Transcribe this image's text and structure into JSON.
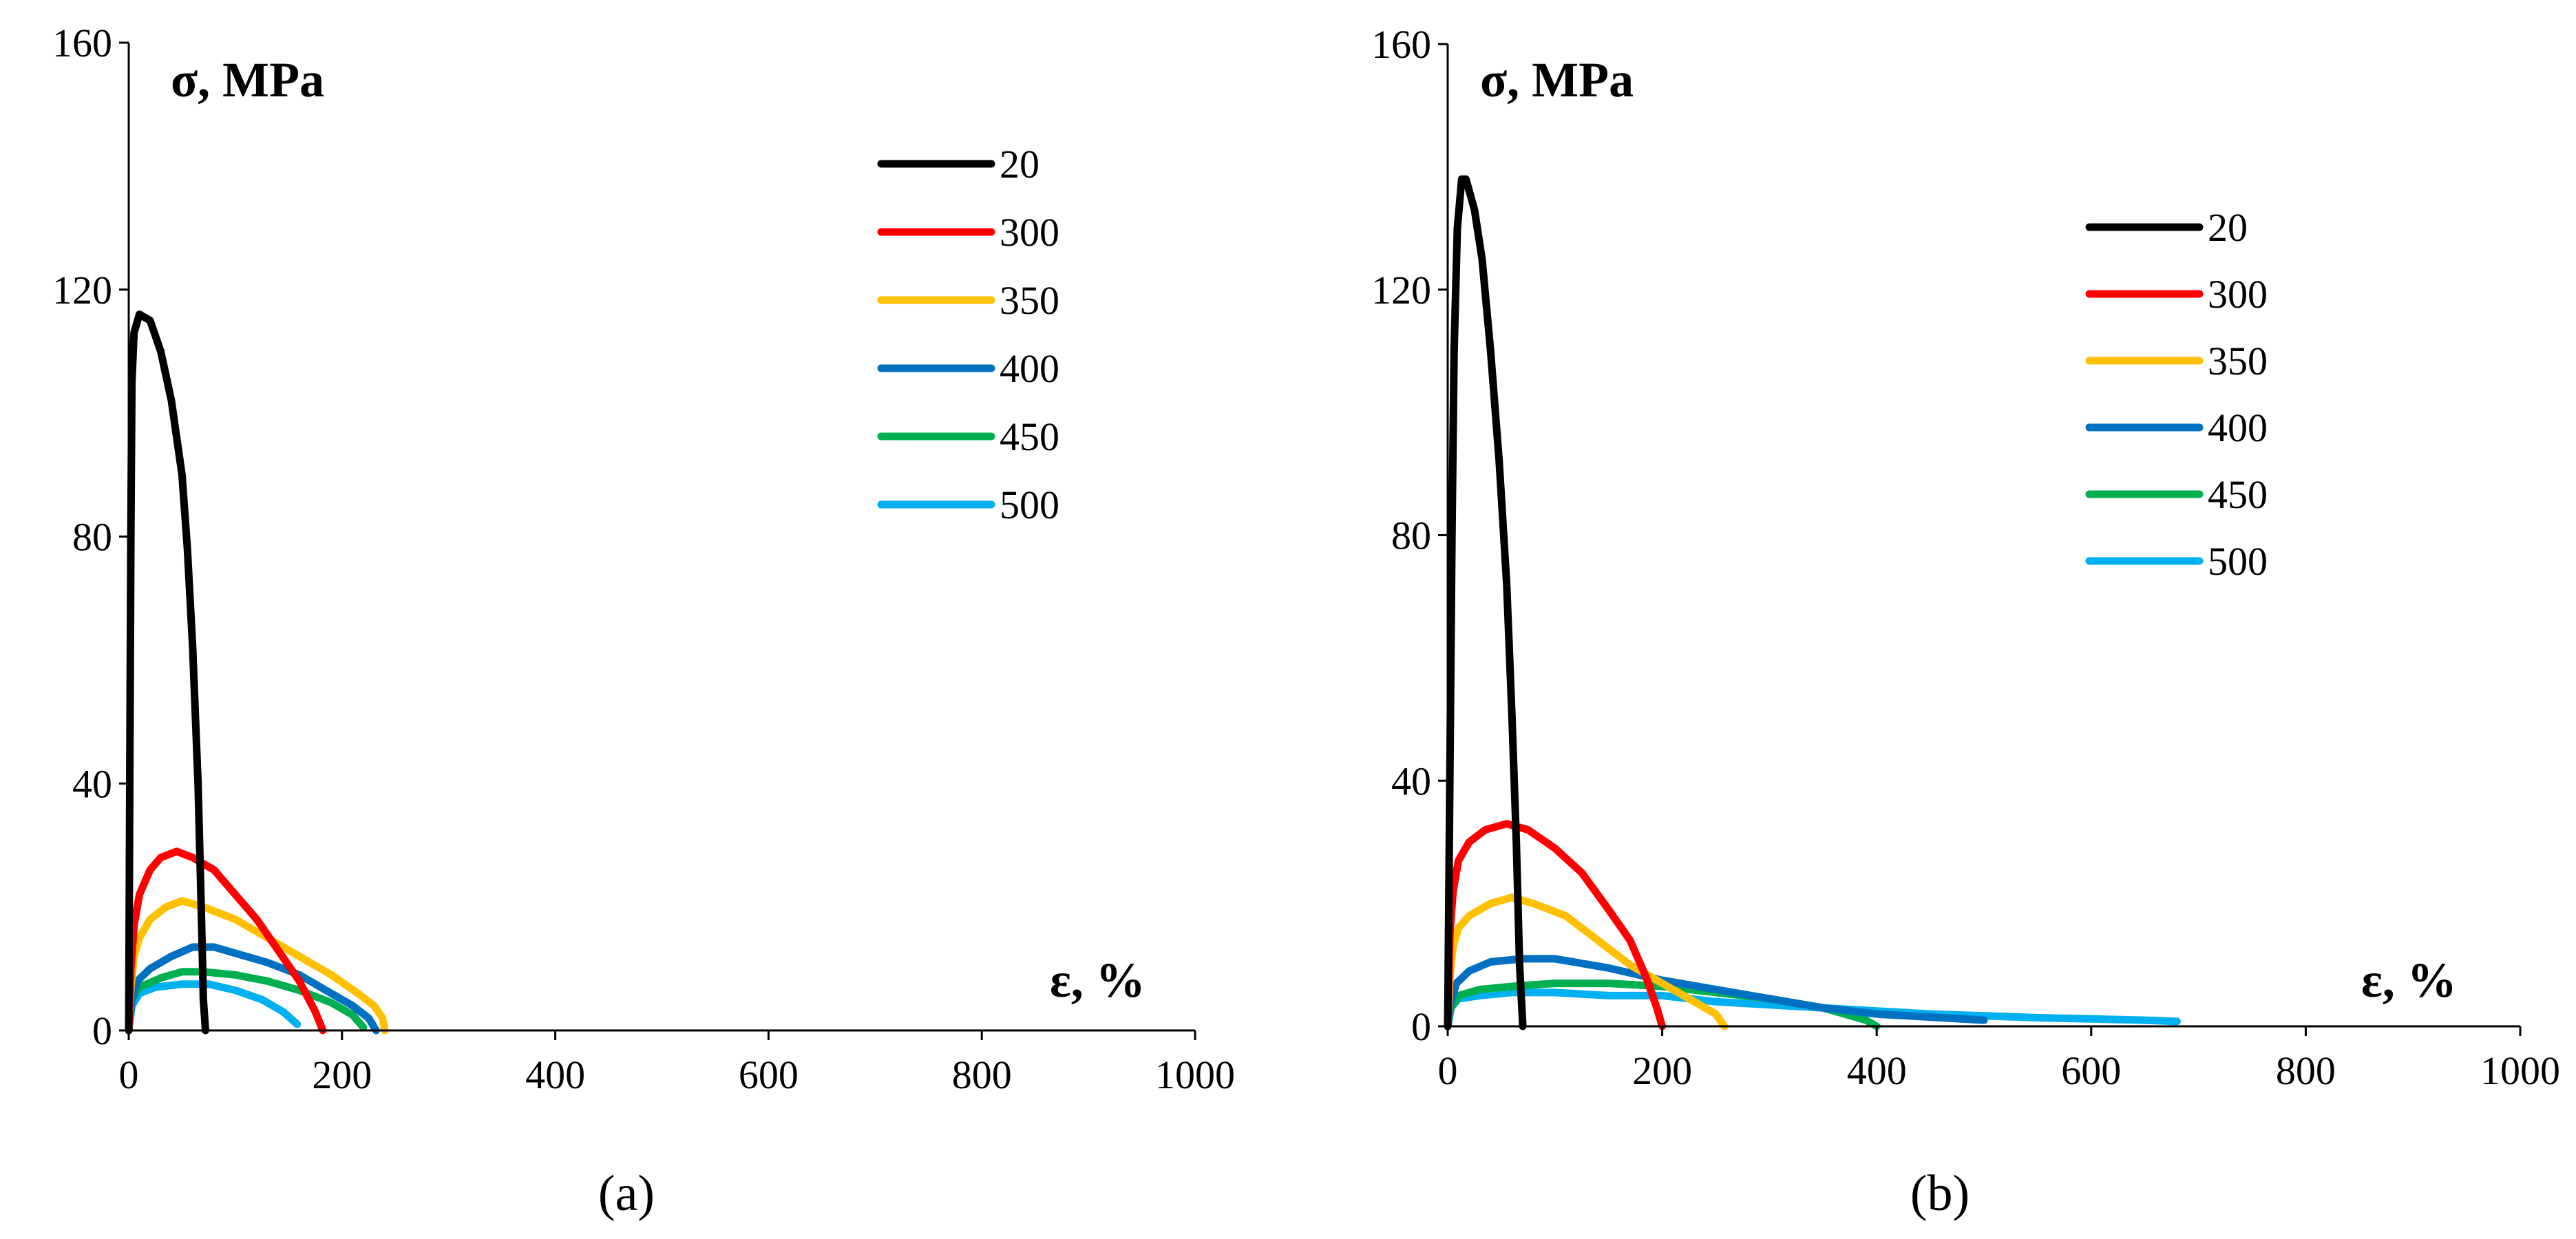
{
  "chart_data": [
    {
      "type": "line",
      "panel_label": "(a)",
      "ylabel": "σ, MPa",
      "xlabel": "ε, %",
      "xlim": [
        0,
        1000
      ],
      "ylim": [
        0,
        160
      ],
      "xticks": [
        "0",
        "200",
        "400",
        "600",
        "800",
        "1000"
      ],
      "yticks": [
        "0",
        "40",
        "80",
        "120",
        "160"
      ],
      "legend_position": "top-right",
      "series": [
        {
          "name": "20",
          "color": "#000000",
          "points": [
            [
              0,
              0
            ],
            [
              1,
              40
            ],
            [
              2,
              80
            ],
            [
              3,
              105
            ],
            [
              5,
              113
            ],
            [
              10,
              116
            ],
            [
              20,
              115
            ],
            [
              30,
              110
            ],
            [
              40,
              102
            ],
            [
              50,
              90
            ],
            [
              55,
              78
            ],
            [
              60,
              62
            ],
            [
              65,
              40
            ],
            [
              68,
              20
            ],
            [
              70,
              5
            ],
            [
              72,
              0
            ]
          ]
        },
        {
          "name": "300",
          "color": "#ff0000",
          "points": [
            [
              0,
              0
            ],
            [
              2,
              10
            ],
            [
              5,
              17
            ],
            [
              10,
              22
            ],
            [
              20,
              26
            ],
            [
              30,
              28
            ],
            [
              45,
              29
            ],
            [
              60,
              28
            ],
            [
              80,
              26
            ],
            [
              100,
              22
            ],
            [
              120,
              18
            ],
            [
              140,
              13
            ],
            [
              160,
              8
            ],
            [
              175,
              3
            ],
            [
              182,
              0
            ]
          ]
        },
        {
          "name": "350",
          "color": "#ffc000",
          "points": [
            [
              0,
              0
            ],
            [
              2,
              7
            ],
            [
              5,
              12
            ],
            [
              10,
              15
            ],
            [
              20,
              18
            ],
            [
              35,
              20
            ],
            [
              50,
              21
            ],
            [
              70,
              20
            ],
            [
              100,
              18
            ],
            [
              130,
              15
            ],
            [
              160,
              12
            ],
            [
              190,
              9
            ],
            [
              215,
              6
            ],
            [
              230,
              4
            ],
            [
              238,
              2
            ],
            [
              240,
              0
            ]
          ]
        },
        {
          "name": "400",
          "color": "#0070c0",
          "points": [
            [
              0,
              0
            ],
            [
              3,
              5
            ],
            [
              8,
              8
            ],
            [
              20,
              10
            ],
            [
              40,
              12
            ],
            [
              60,
              13.5
            ],
            [
              80,
              13.5
            ],
            [
              100,
              12.5
            ],
            [
              130,
              11
            ],
            [
              160,
              9
            ],
            [
              190,
              6
            ],
            [
              210,
              4
            ],
            [
              225,
              2
            ],
            [
              232,
              0
            ]
          ]
        },
        {
          "name": "450",
          "color": "#00b050",
          "points": [
            [
              0,
              0
            ],
            [
              3,
              5
            ],
            [
              10,
              7
            ],
            [
              30,
              8.5
            ],
            [
              50,
              9.5
            ],
            [
              70,
              9.5
            ],
            [
              100,
              9
            ],
            [
              130,
              8
            ],
            [
              160,
              6.5
            ],
            [
              190,
              4.5
            ],
            [
              210,
              2.5
            ],
            [
              220,
              0.5
            ]
          ]
        },
        {
          "name": "500",
          "color": "#00b0f0",
          "points": [
            [
              0,
              0
            ],
            [
              3,
              4
            ],
            [
              10,
              6
            ],
            [
              25,
              7
            ],
            [
              50,
              7.5
            ],
            [
              75,
              7.5
            ],
            [
              100,
              6.5
            ],
            [
              125,
              5
            ],
            [
              145,
              3
            ],
            [
              158,
              1
            ]
          ]
        }
      ]
    },
    {
      "type": "line",
      "panel_label": "(b)",
      "ylabel": "σ, MPa",
      "xlabel": "ε, %",
      "xlim": [
        0,
        1000
      ],
      "ylim": [
        0,
        160
      ],
      "xticks": [
        "0",
        "200",
        "400",
        "600",
        "800",
        "1000"
      ],
      "yticks": [
        "0",
        "40",
        "80",
        "120",
        "160"
      ],
      "legend_position": "top-right",
      "series": [
        {
          "name": "20",
          "color": "#000000",
          "points": [
            [
              0,
              0
            ],
            [
              2,
              40
            ],
            [
              4,
              80
            ],
            [
              6,
              110
            ],
            [
              9,
              130
            ],
            [
              13,
              138
            ],
            [
              17,
              138
            ],
            [
              25,
              133
            ],
            [
              32,
              125
            ],
            [
              40,
              110
            ],
            [
              48,
              92
            ],
            [
              55,
              72
            ],
            [
              60,
              50
            ],
            [
              64,
              30
            ],
            [
              67,
              10
            ],
            [
              70,
              0
            ]
          ]
        },
        {
          "name": "300",
          "color": "#ff0000",
          "points": [
            [
              0,
              0
            ],
            [
              2,
              15
            ],
            [
              5,
              22
            ],
            [
              10,
              27
            ],
            [
              20,
              30
            ],
            [
              35,
              32
            ],
            [
              55,
              33
            ],
            [
              75,
              32
            ],
            [
              100,
              29
            ],
            [
              125,
              25
            ],
            [
              150,
              19
            ],
            [
              170,
              14
            ],
            [
              185,
              8
            ],
            [
              195,
              3
            ],
            [
              200,
              0
            ]
          ]
        },
        {
          "name": "350",
          "color": "#ffc000",
          "points": [
            [
              0,
              0
            ],
            [
              2,
              8
            ],
            [
              5,
              13
            ],
            [
              10,
              16
            ],
            [
              20,
              18
            ],
            [
              40,
              20
            ],
            [
              60,
              21
            ],
            [
              80,
              20
            ],
            [
              110,
              18
            ],
            [
              140,
              14
            ],
            [
              170,
              10
            ],
            [
              200,
              7
            ],
            [
              230,
              4
            ],
            [
              250,
              2
            ],
            [
              258,
              0
            ]
          ]
        },
        {
          "name": "400",
          "color": "#0070c0",
          "points": [
            [
              0,
              0
            ],
            [
              3,
              4
            ],
            [
              8,
              7
            ],
            [
              20,
              9
            ],
            [
              40,
              10.5
            ],
            [
              70,
              11
            ],
            [
              100,
              11
            ],
            [
              150,
              9.5
            ],
            [
              200,
              7.5
            ],
            [
              250,
              6
            ],
            [
              300,
              4.5
            ],
            [
              350,
              3
            ],
            [
              400,
              2
            ],
            [
              450,
              1.5
            ],
            [
              500,
              1
            ]
          ]
        },
        {
          "name": "450",
          "color": "#00b050",
          "points": [
            [
              0,
              0
            ],
            [
              3,
              3
            ],
            [
              10,
              5
            ],
            [
              30,
              6
            ],
            [
              60,
              6.5
            ],
            [
              100,
              7
            ],
            [
              150,
              7
            ],
            [
              200,
              6.5
            ],
            [
              250,
              5.5
            ],
            [
              300,
              4.5
            ],
            [
              350,
              3
            ],
            [
              390,
              1
            ],
            [
              400,
              0
            ]
          ]
        },
        {
          "name": "500",
          "color": "#00b0f0",
          "points": [
            [
              0,
              0
            ],
            [
              3,
              3
            ],
            [
              10,
              4.5
            ],
            [
              30,
              5
            ],
            [
              60,
              5.5
            ],
            [
              100,
              5.5
            ],
            [
              150,
              5
            ],
            [
              200,
              5
            ],
            [
              250,
              4
            ],
            [
              300,
              3.5
            ],
            [
              350,
              3
            ],
            [
              400,
              2.5
            ],
            [
              450,
              2
            ],
            [
              500,
              1.7
            ],
            [
              550,
              1.4
            ],
            [
              600,
              1.2
            ],
            [
              650,
              1
            ],
            [
              680,
              0.8
            ]
          ]
        }
      ]
    }
  ]
}
